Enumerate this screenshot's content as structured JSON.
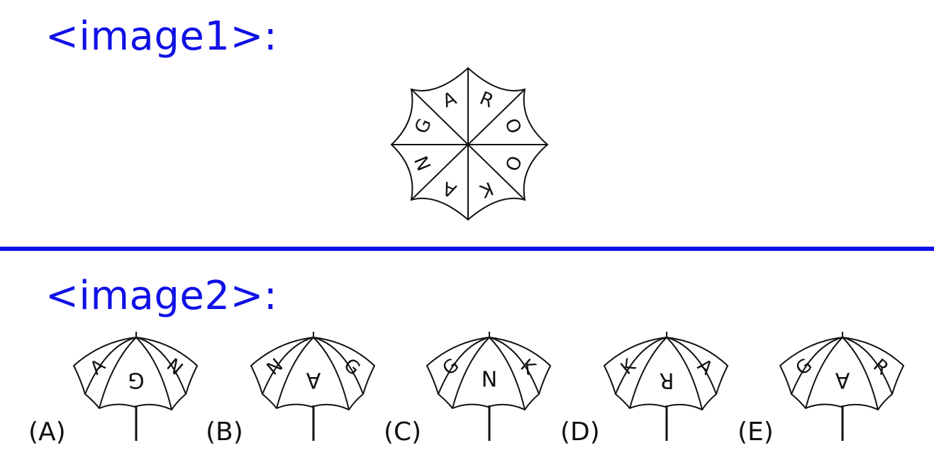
{
  "headings": {
    "image1": "<image1>:",
    "image2": "<image2>:"
  },
  "colors": {
    "heading": "#1010e6",
    "divider": "#1010e6",
    "line": "#111111"
  },
  "figure1": {
    "letters_clockwise_from_top": [
      "G",
      "A",
      "R",
      "O",
      "O",
      "K",
      "A",
      "N"
    ]
  },
  "options": [
    {
      "label": "(A)",
      "letters": [
        "A",
        "G",
        "N"
      ]
    },
    {
      "label": "(B)",
      "letters": [
        "N",
        "A",
        "G"
      ]
    },
    {
      "label": "(C)",
      "letters": [
        "G",
        "N",
        "K"
      ]
    },
    {
      "label": "(D)",
      "letters": [
        "K",
        "R",
        "A"
      ]
    },
    {
      "label": "(E)",
      "letters": [
        "G",
        "A",
        "R"
      ]
    }
  ]
}
